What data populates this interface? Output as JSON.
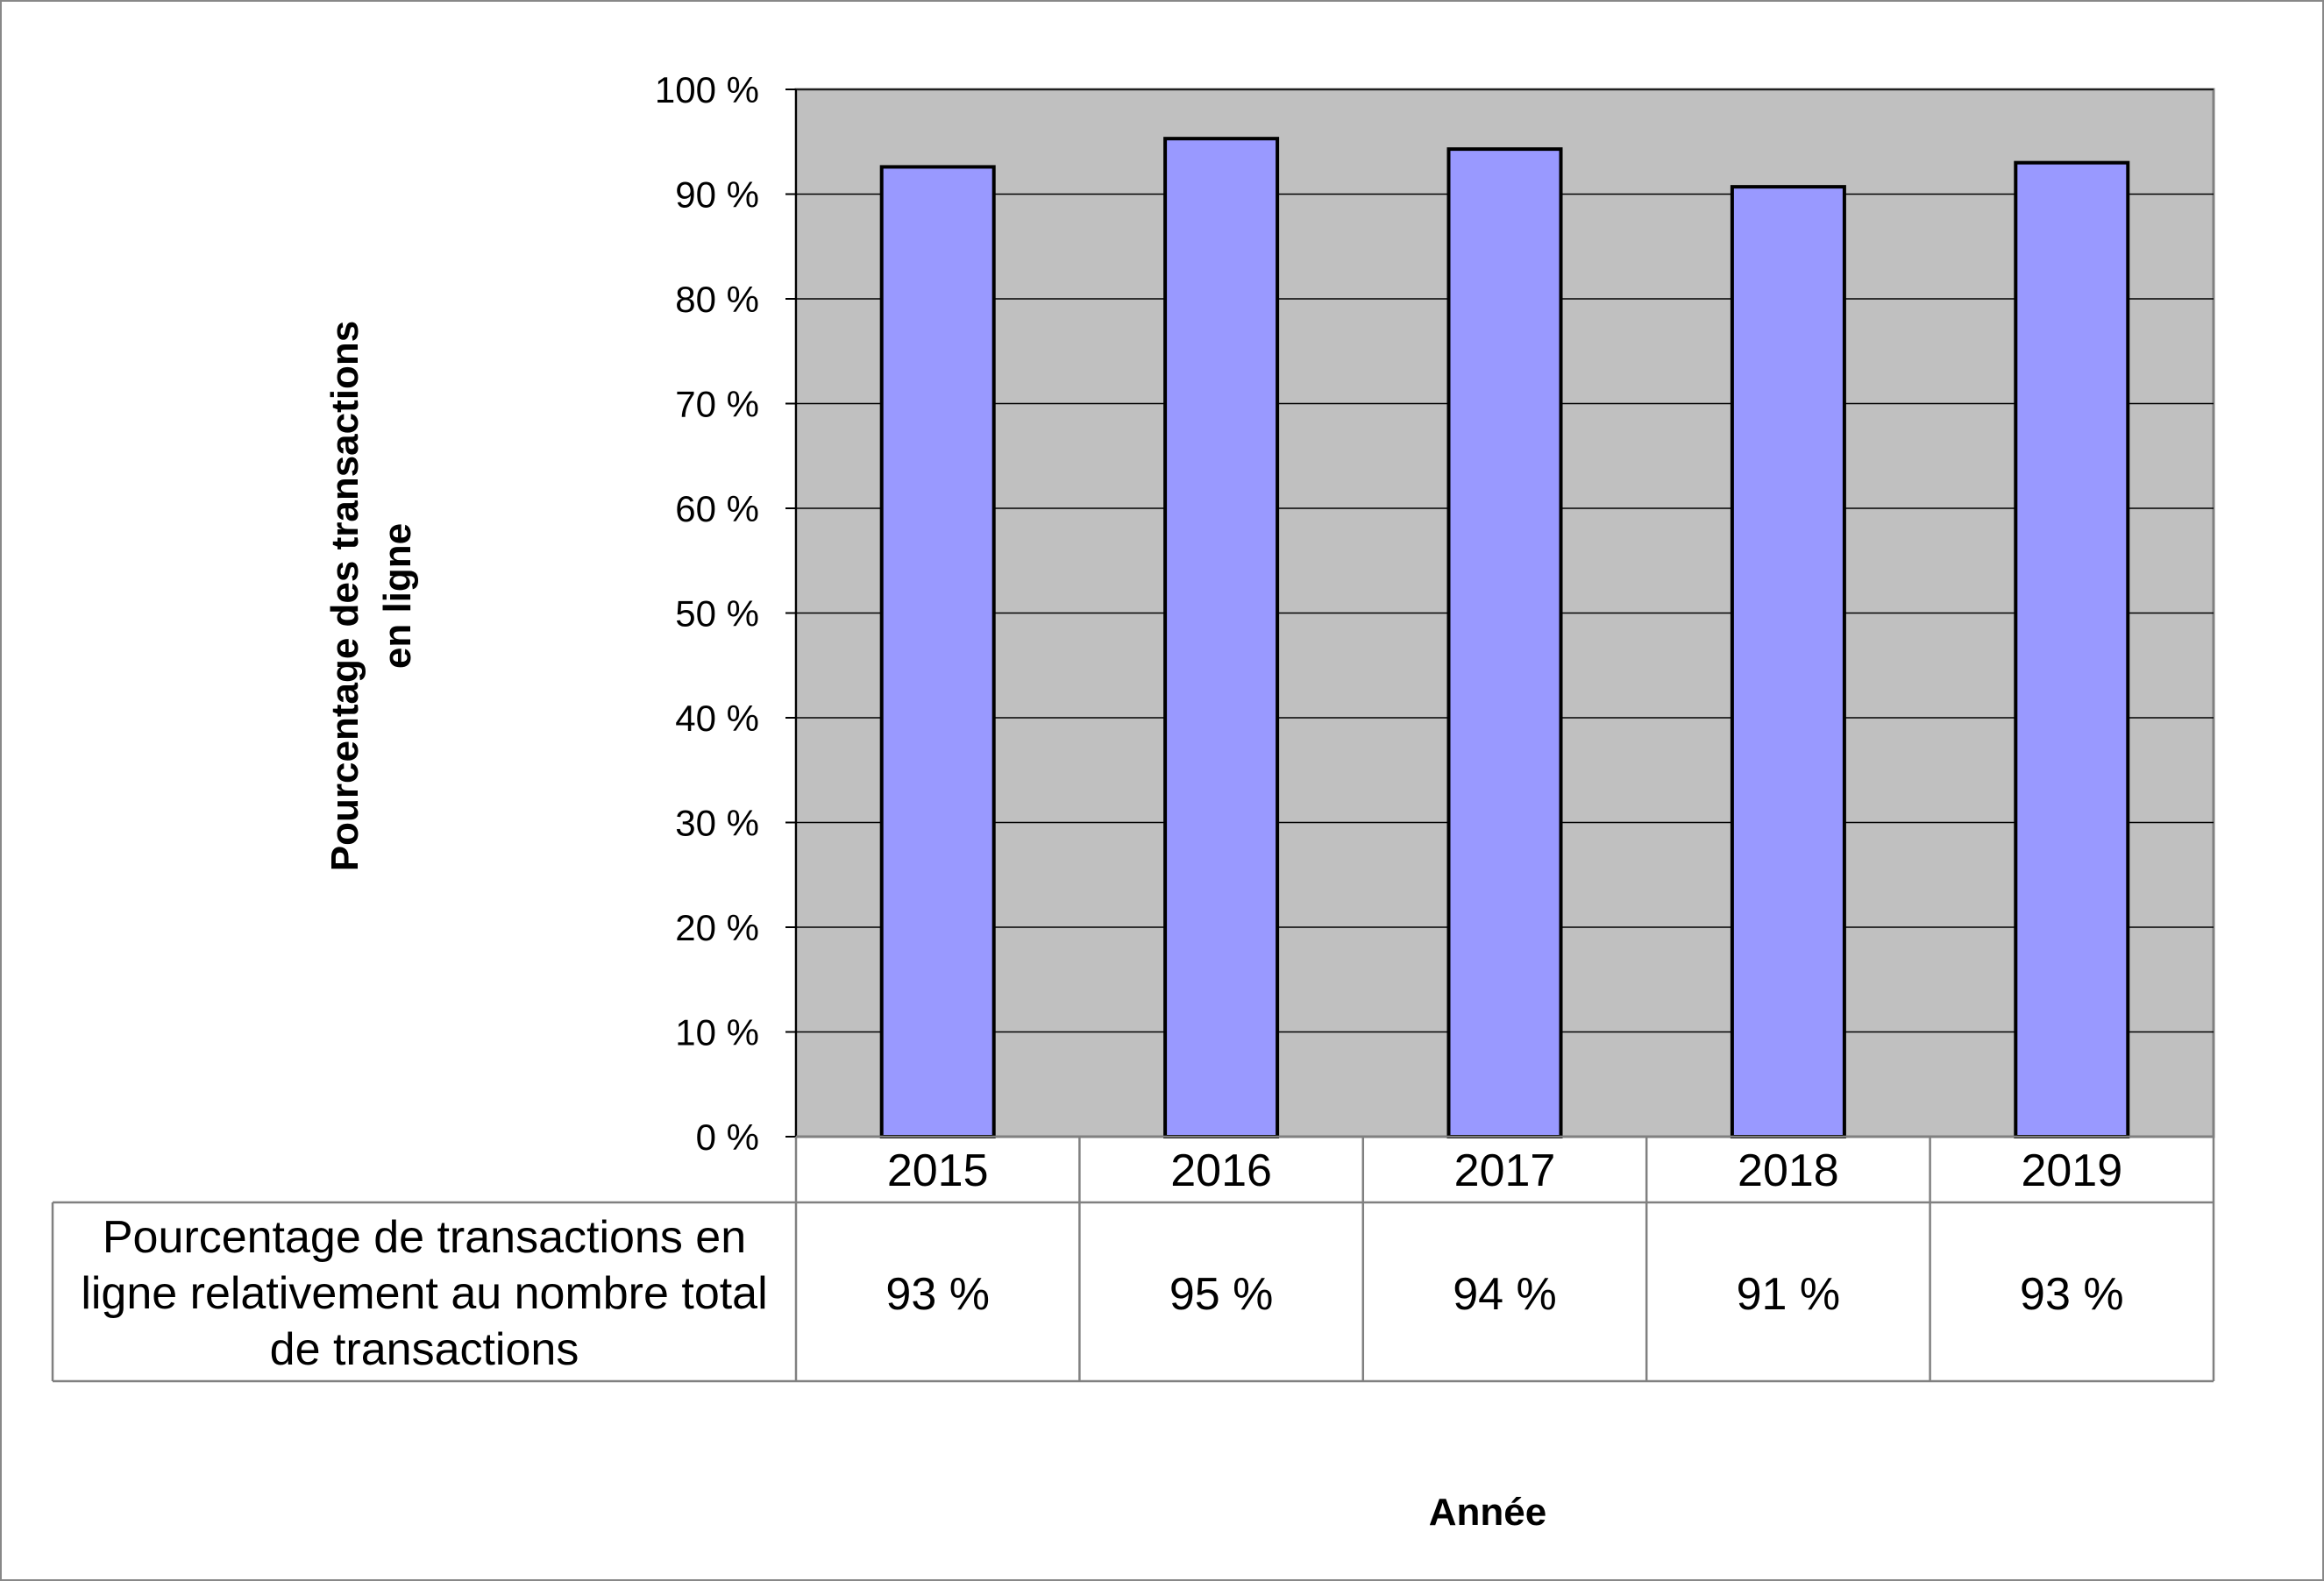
{
  "chart_data": {
    "type": "bar",
    "categories": [
      "2015",
      "2016",
      "2017",
      "2018",
      "2019"
    ],
    "values": [
      92.6,
      95.3,
      94.3,
      90.7,
      93.0
    ],
    "title": "",
    "xlabel": "Année",
    "ylabel": [
      "Pourcentage des transactions",
      "en ligne"
    ],
    "ylim": [
      0,
      100
    ],
    "yticks": [
      "0 %",
      "10 %",
      "20 %",
      "30 %",
      "40 %",
      "50 %",
      "60 %",
      "70 %",
      "80 %",
      "90 %",
      "100 %"
    ],
    "grid": true,
    "colors": {
      "bar_fill": "#9999FF",
      "bar_stroke": "#000000",
      "plot_background": "#C0C0C0",
      "gridline": "#000000"
    },
    "data_table": {
      "row_header_lines": [
        "Pourcentage de transactions en",
        "ligne relativement au nombre total",
        "de transactions"
      ],
      "values": [
        "93 %",
        "95 %",
        "94 %",
        "91 %",
        "93 %"
      ]
    }
  }
}
